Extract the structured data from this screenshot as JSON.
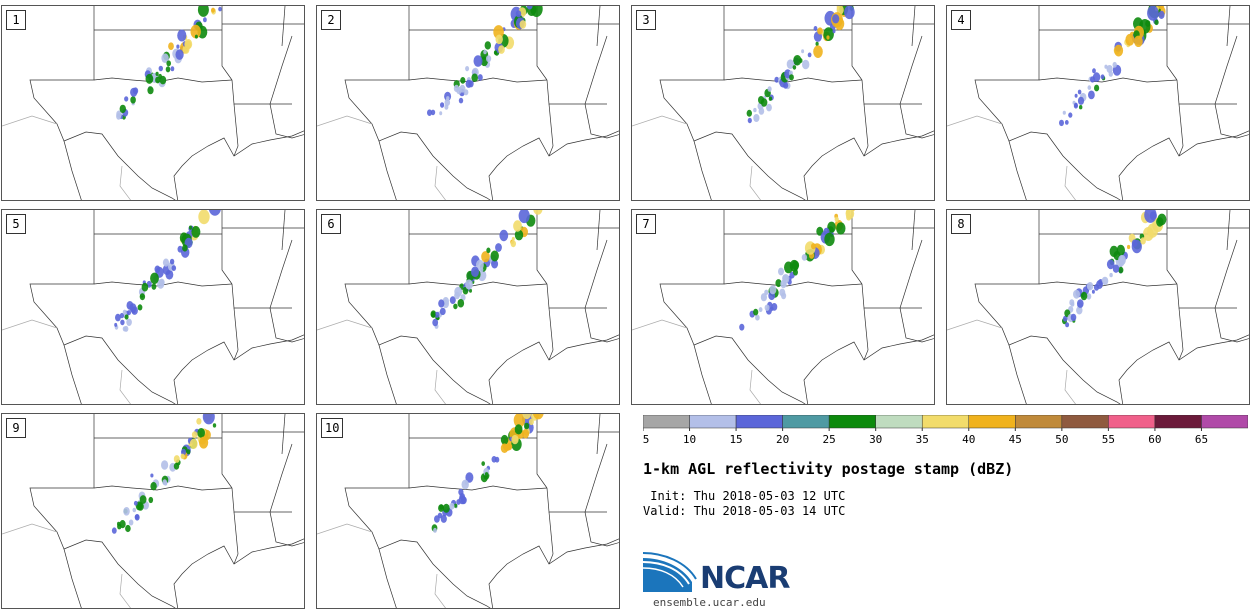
{
  "panels": [
    {
      "label": "1",
      "member": 1
    },
    {
      "label": "2",
      "member": 2
    },
    {
      "label": "3",
      "member": 3
    },
    {
      "label": "4",
      "member": 4
    },
    {
      "label": "5",
      "member": 5
    },
    {
      "label": "6",
      "member": 6
    },
    {
      "label": "7",
      "member": 7
    },
    {
      "label": "8",
      "member": 8
    },
    {
      "label": "9",
      "member": 9
    },
    {
      "label": "10",
      "member": 10
    }
  ],
  "colorbar": {
    "ticks": [
      "5",
      "10",
      "15",
      "20",
      "25",
      "30",
      "35",
      "40",
      "45",
      "50",
      "55",
      "60",
      "65"
    ],
    "colors": [
      "#a6a6a6",
      "#b3bfe8",
      "#5b66d9",
      "#4f9aa3",
      "#0d8a0d",
      "#bfdcbf",
      "#f2dc6b",
      "#f0b21d",
      "#c08a3a",
      "#8f5a3f",
      "#f0608a",
      "#6b1a3a",
      "#b04aa8"
    ]
  },
  "title": "1-km AGL reflectivity postage stamp (dBZ)",
  "init_line": " Init: Thu 2018-05-03 12 UTC",
  "valid_line": "Valid: Thu 2018-05-03 14 UTC",
  "logo_text": "NCAR",
  "site": "ensemble.ucar.edu"
}
